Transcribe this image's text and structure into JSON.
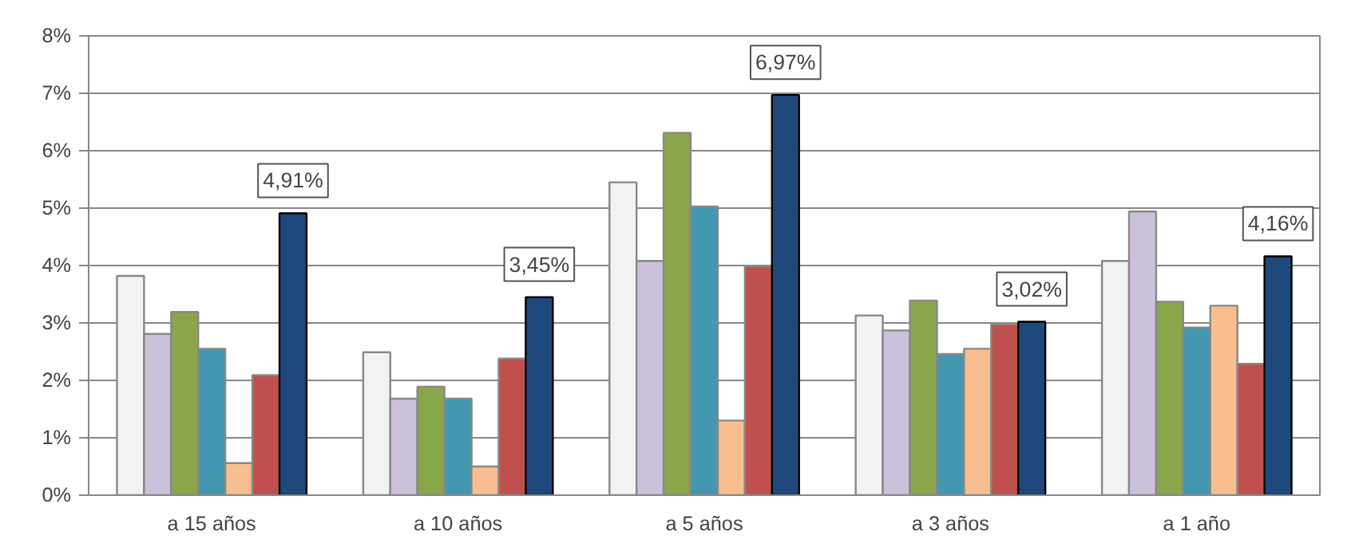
{
  "chart_data": {
    "type": "bar",
    "categories": [
      "a 15 años",
      "a 10 años",
      "a 5 años",
      "a 3 años",
      "a 1 año"
    ],
    "series": [
      {
        "color": "#f2f2f2",
        "values": [
          3.82,
          2.49,
          5.45,
          3.13,
          4.08
        ]
      },
      {
        "color": "#ccc1da",
        "values": [
          2.81,
          1.68,
          4.08,
          2.87,
          4.94
        ]
      },
      {
        "color": "#8aa64b",
        "values": [
          3.19,
          1.89,
          6.31,
          3.39,
          3.37
        ]
      },
      {
        "color": "#4397b0",
        "values": [
          2.55,
          1.68,
          5.03,
          2.46,
          2.92
        ]
      },
      {
        "color": "#f9be8f",
        "values": [
          0.56,
          0.5,
          1.3,
          2.55,
          3.3
        ]
      },
      {
        "color": "#c0504d",
        "values": [
          2.09,
          2.38,
          3.99,
          2.98,
          2.29
        ]
      },
      {
        "color": "#1f497d",
        "values": [
          4.91,
          3.45,
          6.97,
          3.02,
          4.16
        ],
        "value_labels": [
          "4,91%",
          "3,45%",
          "6,97%",
          "3,02%",
          "4,16%"
        ]
      }
    ],
    "ylim": [
      0,
      8
    ],
    "yticks": [
      {
        "value": 0,
        "label": "0%"
      },
      {
        "value": 1,
        "label": "1%"
      },
      {
        "value": 2,
        "label": "2%"
      },
      {
        "value": 3,
        "label": "3%"
      },
      {
        "value": 4,
        "label": "4%"
      },
      {
        "value": 5,
        "label": "5%"
      },
      {
        "value": 6,
        "label": "6%"
      },
      {
        "value": 7,
        "label": "7%"
      },
      {
        "value": 8,
        "label": "8%"
      }
    ],
    "grid": "y"
  }
}
